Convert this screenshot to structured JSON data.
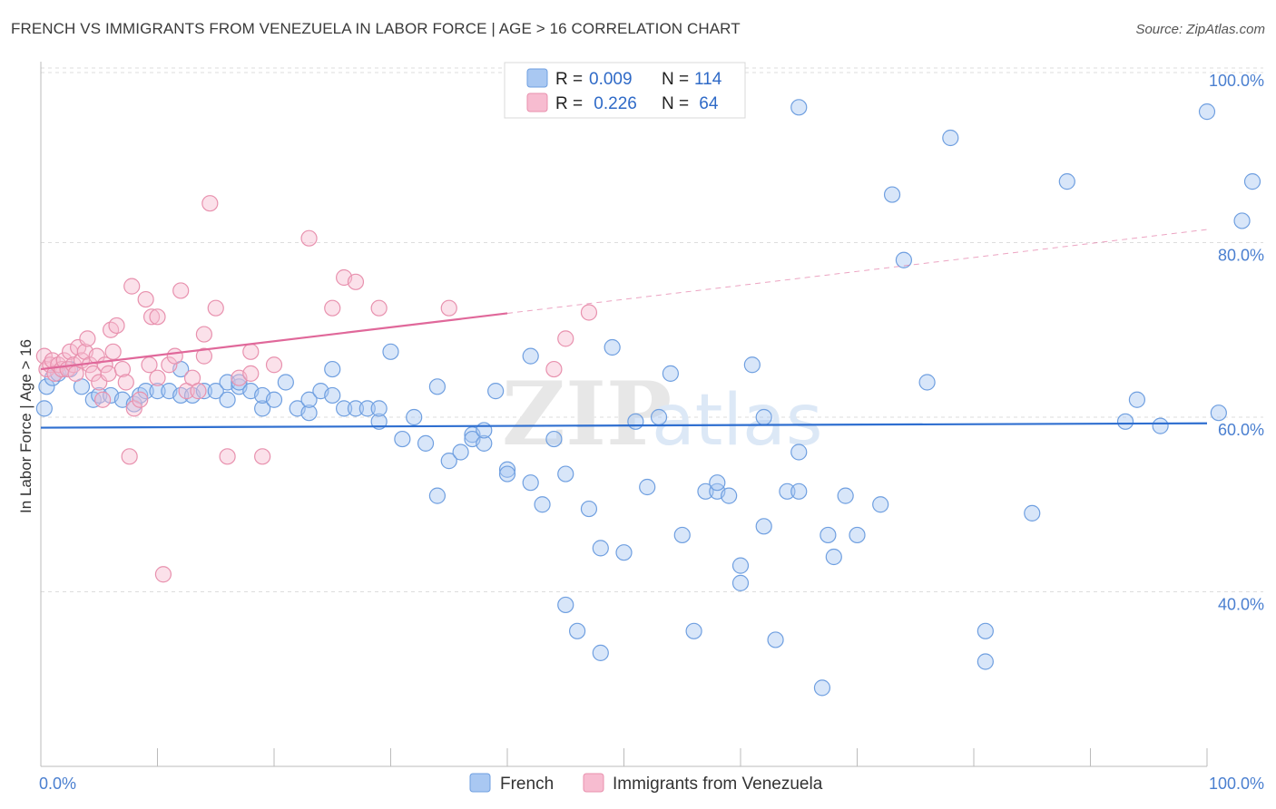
{
  "title": "FRENCH VS IMMIGRANTS FROM VENEZUELA IN LABOR FORCE | AGE > 16 CORRELATION CHART",
  "source": "Source: ZipAtlas.com",
  "watermark": {
    "zip": "ZIP",
    "atlas": "atlas"
  },
  "colors": {
    "french_fill": "#a9c8f2",
    "french_stroke": "#6f9fe0",
    "french_line": "#2f6fd0",
    "venezuela_fill": "#f7bcd0",
    "venezuela_stroke": "#e891ae",
    "venezuela_line": "#e0689a",
    "grid": "#dddddd",
    "axis_label": "#4a7fd0"
  },
  "legend": {
    "rows": [
      {
        "r_label": "R = ",
        "r_value": "0.009",
        "n_label": "N = ",
        "n_value": "114"
      },
      {
        "r_label": "R = ",
        "r_value": " 0.226",
        "n_label": "N = ",
        "n_value": " 64"
      }
    ]
  },
  "chart_data": {
    "type": "scatter",
    "title": "FRENCH VS IMMIGRANTS FROM VENEZUELA IN LABOR FORCE | AGE > 16 CORRELATION CHART",
    "xlabel": "",
    "ylabel": "In Labor Force | Age > 16",
    "xlim": [
      0,
      100
    ],
    "ylim": [
      20,
      100
    ],
    "x_tick_labels": [
      "0.0%",
      "100.0%"
    ],
    "y_tick_values": [
      40,
      60,
      80,
      100
    ],
    "y_tick_labels": [
      "40.0%",
      "60.0%",
      "80.0%",
      "100.0%"
    ],
    "grid": true,
    "legend_position": "top-center",
    "series": [
      {
        "name": "French",
        "r": 0.009,
        "n": 114,
        "trend": {
          "x0": 0,
          "y0": 58.8,
          "x1": 100,
          "y1": 59.3,
          "solid_until": 100
        },
        "points": [
          [
            0.3,
            61
          ],
          [
            0.5,
            63.5
          ],
          [
            1,
            64.5
          ],
          [
            1.5,
            65
          ],
          [
            2.5,
            65.5
          ],
          [
            3.5,
            63.5
          ],
          [
            4.5,
            62
          ],
          [
            5,
            62.5
          ],
          [
            6,
            62.5
          ],
          [
            7,
            62
          ],
          [
            8,
            61.5
          ],
          [
            8.5,
            62.5
          ],
          [
            9,
            63
          ],
          [
            10,
            63
          ],
          [
            11,
            63
          ],
          [
            12,
            65.5
          ],
          [
            12,
            62.5
          ],
          [
            13,
            62.5
          ],
          [
            14,
            63
          ],
          [
            15,
            63
          ],
          [
            16,
            62
          ],
          [
            16,
            64
          ],
          [
            17,
            63.5
          ],
          [
            17,
            64
          ],
          [
            18,
            63
          ],
          [
            19,
            61
          ],
          [
            19,
            62.5
          ],
          [
            20,
            62
          ],
          [
            21,
            64
          ],
          [
            22,
            61
          ],
          [
            23,
            60.5
          ],
          [
            23,
            62
          ],
          [
            24,
            63
          ],
          [
            25,
            62.5
          ],
          [
            25,
            65.5
          ],
          [
            26,
            61
          ],
          [
            27,
            61
          ],
          [
            28,
            61
          ],
          [
            29,
            59.5
          ],
          [
            29,
            61
          ],
          [
            30,
            67.5
          ],
          [
            31,
            57.5
          ],
          [
            32,
            60
          ],
          [
            33,
            57
          ],
          [
            34,
            51
          ],
          [
            34,
            63.5
          ],
          [
            35,
            55
          ],
          [
            36,
            56
          ],
          [
            37,
            58
          ],
          [
            37,
            57.5
          ],
          [
            38,
            57
          ],
          [
            38,
            58.5
          ],
          [
            39,
            63
          ],
          [
            40,
            54
          ],
          [
            40,
            53.5
          ],
          [
            42,
            67
          ],
          [
            42,
            52.5
          ],
          [
            43,
            50
          ],
          [
            44,
            57.5
          ],
          [
            45,
            53.5
          ],
          [
            45,
            38.5
          ],
          [
            46,
            35.5
          ],
          [
            47,
            49.5
          ],
          [
            48,
            45
          ],
          [
            48,
            33
          ],
          [
            49,
            68
          ],
          [
            50,
            44.5
          ],
          [
            51,
            59.5
          ],
          [
            52,
            52
          ],
          [
            53,
            60
          ],
          [
            54,
            65
          ],
          [
            55,
            46.5
          ],
          [
            56,
            35.5
          ],
          [
            57,
            51.5
          ],
          [
            58,
            51.5
          ],
          [
            58,
            52.5
          ],
          [
            59,
            51
          ],
          [
            60,
            43
          ],
          [
            60,
            41
          ],
          [
            61,
            66
          ],
          [
            62,
            47.5
          ],
          [
            62,
            60
          ],
          [
            63,
            34.5
          ],
          [
            64,
            51.5
          ],
          [
            65,
            51.5
          ],
          [
            65,
            56
          ],
          [
            65,
            95.5
          ],
          [
            67,
            29
          ],
          [
            67.5,
            46.5
          ],
          [
            68,
            44
          ],
          [
            69,
            51
          ],
          [
            70,
            46.5
          ],
          [
            72,
            50
          ],
          [
            73,
            85.5
          ],
          [
            74,
            78
          ],
          [
            76,
            64
          ],
          [
            78,
            92
          ],
          [
            81,
            32
          ],
          [
            81,
            35.5
          ],
          [
            85,
            49
          ],
          [
            88,
            87
          ],
          [
            93,
            59.5
          ],
          [
            94,
            62
          ],
          [
            96,
            59
          ],
          [
            101,
            60.5
          ],
          [
            103,
            82.5
          ],
          [
            105,
            87
          ],
          [
            100,
            95
          ]
        ]
      },
      {
        "name": "Immigrants from Venezuela",
        "r": 0.226,
        "n": 64,
        "trend": {
          "x0": 0,
          "y0": 65.5,
          "x1": 100,
          "y1": 81.5,
          "solid_until": 40
        },
        "points": [
          [
            0.3,
            67
          ],
          [
            0.5,
            65.5
          ],
          [
            0.8,
            66
          ],
          [
            1,
            66.5
          ],
          [
            1.2,
            65
          ],
          [
            1.5,
            66
          ],
          [
            1.8,
            65.5
          ],
          [
            2,
            66.5
          ],
          [
            2.3,
            65.5
          ],
          [
            2.5,
            67.5
          ],
          [
            2.8,
            66
          ],
          [
            3,
            65
          ],
          [
            3.2,
            68
          ],
          [
            3.5,
            66.5
          ],
          [
            3.8,
            67.5
          ],
          [
            4,
            69
          ],
          [
            4.2,
            66
          ],
          [
            4.5,
            65
          ],
          [
            4.8,
            67
          ],
          [
            5,
            64
          ],
          [
            5.3,
            62
          ],
          [
            5.5,
            66
          ],
          [
            5.8,
            65
          ],
          [
            6,
            70
          ],
          [
            6.2,
            67.5
          ],
          [
            6.5,
            70.5
          ],
          [
            7,
            65.5
          ],
          [
            7.3,
            64
          ],
          [
            7.6,
            55.5
          ],
          [
            7.8,
            75
          ],
          [
            8,
            61
          ],
          [
            8.5,
            62
          ],
          [
            9,
            73.5
          ],
          [
            9.3,
            66
          ],
          [
            9.5,
            71.5
          ],
          [
            10,
            71.5
          ],
          [
            10,
            64.5
          ],
          [
            10.5,
            42
          ],
          [
            11,
            66
          ],
          [
            11.5,
            67
          ],
          [
            12,
            74.5
          ],
          [
            12.5,
            63
          ],
          [
            13,
            64.5
          ],
          [
            13.5,
            63
          ],
          [
            14,
            67
          ],
          [
            14,
            69.5
          ],
          [
            14.5,
            84.5
          ],
          [
            15,
            72.5
          ],
          [
            16,
            55.5
          ],
          [
            17,
            64.5
          ],
          [
            18,
            67.5
          ],
          [
            18,
            65
          ],
          [
            19,
            55.5
          ],
          [
            20,
            66
          ],
          [
            23,
            80.5
          ],
          [
            25,
            72.5
          ],
          [
            26,
            76
          ],
          [
            27,
            75.5
          ],
          [
            29,
            72.5
          ],
          [
            35,
            72.5
          ],
          [
            44,
            65.5
          ],
          [
            45,
            69
          ],
          [
            47,
            72
          ]
        ]
      }
    ]
  }
}
